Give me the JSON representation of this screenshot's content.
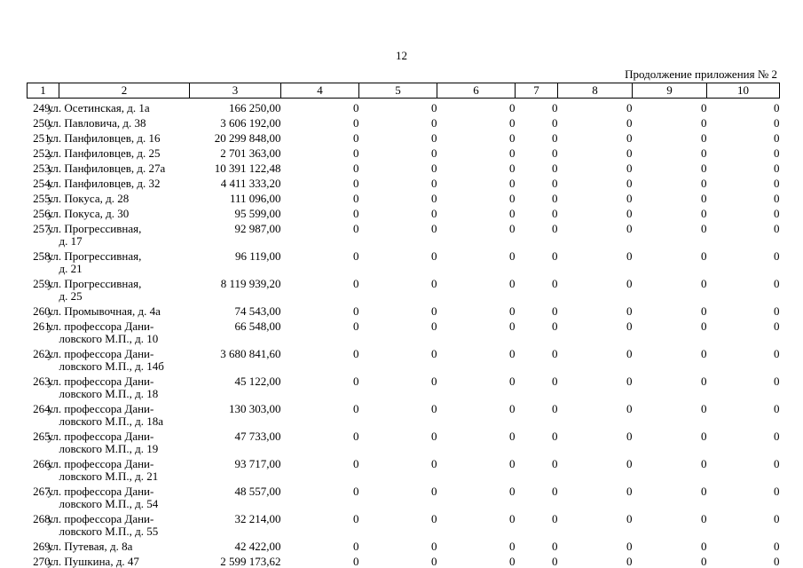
{
  "page": {
    "number": "12",
    "continuation": "Продолжение приложения № 2"
  },
  "table": {
    "headers": [
      "1",
      "2",
      "3",
      "4",
      "5",
      "6",
      "7",
      "8",
      "9",
      "10"
    ],
    "rows": [
      {
        "num": "249.",
        "address": "ул. Осетинская, д. 1а",
        "amount": "166 250,00",
        "values": [
          "0",
          "0",
          "0",
          "0",
          "0",
          "0",
          "0"
        ]
      },
      {
        "num": "250.",
        "address": "ул. Павловича, д. 38",
        "amount": "3 606 192,00",
        "values": [
          "0",
          "0",
          "0",
          "0",
          "0",
          "0",
          "0"
        ]
      },
      {
        "num": "251.",
        "address": "ул. Панфиловцев, д. 16",
        "amount": "20 299 848,00",
        "values": [
          "0",
          "0",
          "0",
          "0",
          "0",
          "0",
          "0"
        ]
      },
      {
        "num": "252.",
        "address": "ул. Панфиловцев, д. 25",
        "amount": "2 701 363,00",
        "values": [
          "0",
          "0",
          "0",
          "0",
          "0",
          "0",
          "0"
        ]
      },
      {
        "num": "253.",
        "address": "ул. Панфиловцев, д. 27а",
        "amount": "10 391 122,48",
        "values": [
          "0",
          "0",
          "0",
          "0",
          "0",
          "0",
          "0"
        ]
      },
      {
        "num": "254.",
        "address": "ул. Панфиловцев, д. 32",
        "amount": "4 411 333,20",
        "values": [
          "0",
          "0",
          "0",
          "0",
          "0",
          "0",
          "0"
        ]
      },
      {
        "num": "255.",
        "address": "ул. Покуса, д. 28",
        "amount": "111 096,00",
        "values": [
          "0",
          "0",
          "0",
          "0",
          "0",
          "0",
          "0"
        ]
      },
      {
        "num": "256.",
        "address": "ул. Покуса, д. 30",
        "amount": "95 599,00",
        "values": [
          "0",
          "0",
          "0",
          "0",
          "0",
          "0",
          "0"
        ]
      },
      {
        "num": "257.",
        "address": "ул. Прогрессивная,\nд. 17",
        "amount": "92 987,00",
        "values": [
          "0",
          "0",
          "0",
          "0",
          "0",
          "0",
          "0"
        ]
      },
      {
        "num": "258.",
        "address": "ул. Прогрессивная,\nд. 21",
        "amount": "96 119,00",
        "values": [
          "0",
          "0",
          "0",
          "0",
          "0",
          "0",
          "0"
        ]
      },
      {
        "num": "259.",
        "address": "ул. Прогрессивная,\nд. 25",
        "amount": "8 119 939,20",
        "values": [
          "0",
          "0",
          "0",
          "0",
          "0",
          "0",
          "0"
        ]
      },
      {
        "num": "260.",
        "address": "ул. Промывочная, д. 4а",
        "amount": "74 543,00",
        "values": [
          "0",
          "0",
          "0",
          "0",
          "0",
          "0",
          "0"
        ]
      },
      {
        "num": "261.",
        "address": "ул. профессора Дани-\nловского М.П., д. 10",
        "amount": "66 548,00",
        "values": [
          "0",
          "0",
          "0",
          "0",
          "0",
          "0",
          "0"
        ]
      },
      {
        "num": "262.",
        "address": "ул. профессора Дани-\nловского М.П., д. 14б",
        "amount": "3 680 841,60",
        "values": [
          "0",
          "0",
          "0",
          "0",
          "0",
          "0",
          "0"
        ]
      },
      {
        "num": "263.",
        "address": "ул. профессора Дани-\nловского М.П., д. 18",
        "amount": "45 122,00",
        "values": [
          "0",
          "0",
          "0",
          "0",
          "0",
          "0",
          "0"
        ]
      },
      {
        "num": "264.",
        "address": "ул. профессора Дани-\nловского М.П., д. 18а",
        "amount": "130 303,00",
        "values": [
          "0",
          "0",
          "0",
          "0",
          "0",
          "0",
          "0"
        ]
      },
      {
        "num": "265.",
        "address": "ул. профессора Дани-\nловского М.П., д. 19",
        "amount": "47 733,00",
        "values": [
          "0",
          "0",
          "0",
          "0",
          "0",
          "0",
          "0"
        ]
      },
      {
        "num": "266.",
        "address": "ул. профессора Дани-\nловского М.П., д. 21",
        "amount": "93 717,00",
        "values": [
          "0",
          "0",
          "0",
          "0",
          "0",
          "0",
          "0"
        ]
      },
      {
        "num": "267.",
        "address": "ул. профессора Дани-\nловского М.П., д. 54",
        "amount": "48 557,00",
        "values": [
          "0",
          "0",
          "0",
          "0",
          "0",
          "0",
          "0"
        ]
      },
      {
        "num": "268.",
        "address": "ул. профессора Дани-\nловского М.П., д. 55",
        "amount": "32 214,00",
        "values": [
          "0",
          "0",
          "0",
          "0",
          "0",
          "0",
          "0"
        ]
      },
      {
        "num": "269.",
        "address": "ул. Путевая, д. 8а",
        "amount": "42 422,00",
        "values": [
          "0",
          "0",
          "0",
          "0",
          "0",
          "0",
          "0"
        ]
      },
      {
        "num": "270.",
        "address": "ул. Пушкина, д. 47",
        "amount": "2 599 173,62",
        "values": [
          "0",
          "0",
          "0",
          "0",
          "0",
          "0",
          "0"
        ]
      }
    ]
  }
}
